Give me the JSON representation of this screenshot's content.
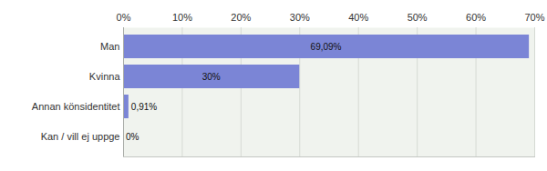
{
  "chart_data": {
    "type": "bar",
    "orientation": "horizontal",
    "categories": [
      "Man",
      "Kvinna",
      "Annan könsidentitet",
      "Kan / vill ej uppge"
    ],
    "values": [
      69.09,
      30,
      0.91,
      0
    ],
    "value_labels": [
      "69,09%",
      "30%",
      "0,91%",
      "0%"
    ],
    "data_labels": true,
    "color": "#7b85d6",
    "xlim": [
      0,
      70
    ],
    "xticks": [
      {
        "value": 0,
        "label": "0%"
      },
      {
        "value": 10,
        "label": "10%"
      },
      {
        "value": 20,
        "label": "20%"
      },
      {
        "value": 30,
        "label": "30%"
      },
      {
        "value": 40,
        "label": "40%"
      },
      {
        "value": 50,
        "label": "50%"
      },
      {
        "value": 60,
        "label": "60%"
      },
      {
        "value": 70,
        "label": "70%"
      }
    ],
    "grid": true
  }
}
